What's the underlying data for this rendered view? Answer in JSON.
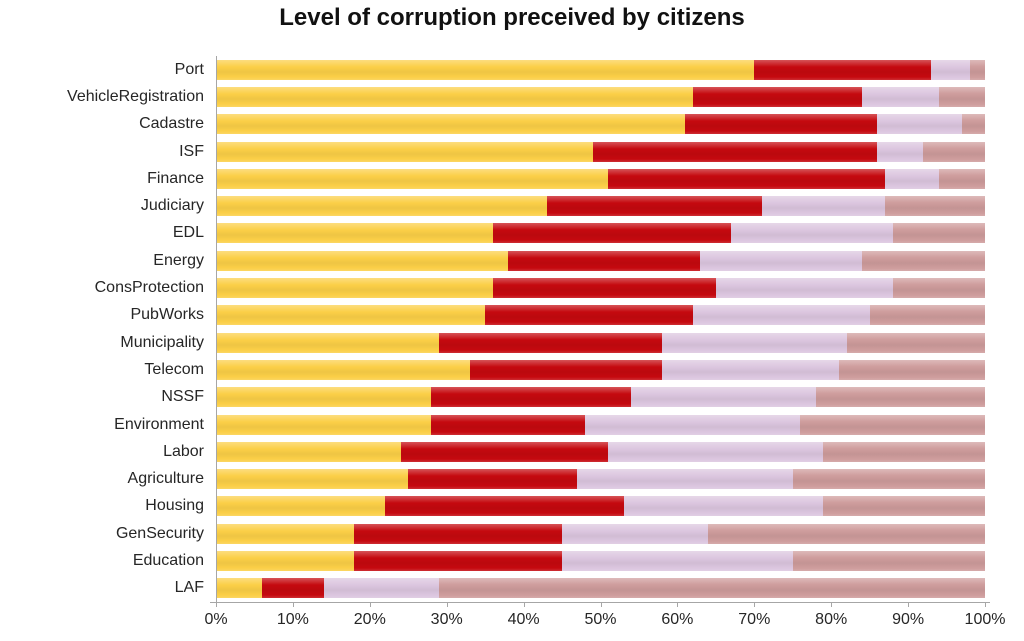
{
  "chart_data": {
    "type": "bar",
    "orientation": "horizontal",
    "stacked": true,
    "title": "Level of corruption preceived by citizens",
    "xlabel": "",
    "ylabel": "",
    "xlim": [
      0,
      100
    ],
    "grid": "none",
    "legend_position": "none",
    "x_ticks": [
      "0%",
      "10%",
      "20%",
      "30%",
      "40%",
      "50%",
      "60%",
      "70%",
      "80%",
      "90%",
      "100%"
    ],
    "categories": [
      "Port",
      "VehicleRegistration",
      "Cadastre",
      "ISF",
      "Finance",
      "Judiciary",
      "EDL",
      "Energy",
      "ConsProtection",
      "PubWorks",
      "Municipality",
      "Telecom",
      "NSSF",
      "Environment",
      "Labor",
      "Agriculture",
      "Housing",
      "GenSecurity",
      "Education",
      "LAF"
    ],
    "series": [
      {
        "name": "yellow",
        "color": "#FBCF47",
        "values": [
          70,
          62,
          61,
          49,
          51,
          43,
          36,
          38,
          36,
          35,
          29,
          33,
          28,
          28,
          24,
          25,
          22,
          18,
          18,
          6
        ]
      },
      {
        "name": "red",
        "color": "#C5090F",
        "values": [
          23,
          22,
          25,
          37,
          36,
          28,
          31,
          25,
          29,
          27,
          29,
          25,
          26,
          20,
          27,
          22,
          31,
          27,
          27,
          8
        ]
      },
      {
        "name": "lavender",
        "color": "#DCC6DF",
        "values": [
          5,
          10,
          11,
          6,
          7,
          16,
          21,
          21,
          23,
          23,
          24,
          23,
          24,
          28,
          28,
          28,
          26,
          19,
          30,
          15
        ]
      },
      {
        "name": "mauve",
        "color": "#CE9C9C",
        "values": [
          2,
          6,
          3,
          8,
          6,
          13,
          12,
          16,
          12,
          15,
          18,
          19,
          22,
          24,
          21,
          25,
          21,
          36,
          25,
          71
        ]
      }
    ]
  },
  "axis": {
    "line_color": "#a6a6a6",
    "text_color": "#262626"
  }
}
